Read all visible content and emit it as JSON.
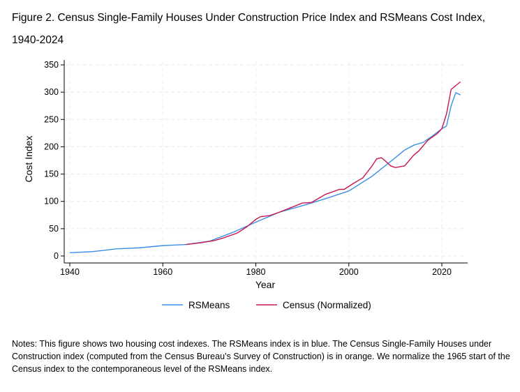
{
  "title": "Figure 2. Census Single-Family Houses Under Construction Price Index and RSMeans Cost Index, 1940-2024",
  "notes": "Notes: This figure shows two housing cost indexes. The RSMeans index is in blue. The Census Single-Family Houses under Construction index (computed from the Census Bureau’s Survey of Construction) is in orange. We normalize the 1965 start of the Census index to the contemporaneous level of the RSMeans index.",
  "chart_data": {
    "type": "line",
    "xlabel": "Year",
    "ylabel": "Cost Index",
    "xlim": [
      1940,
      2024
    ],
    "ylim": [
      0,
      350
    ],
    "xticks": [
      "1940",
      "1960",
      "1980",
      "2000",
      "2020"
    ],
    "yticks": [
      "0",
      "50",
      "100",
      "150",
      "200",
      "250",
      "300",
      "350"
    ],
    "grid": true,
    "legend": "bottom",
    "series": [
      {
        "name": "RSMeans",
        "color": "#3a8ee6",
        "x": [
          1940,
          1945,
          1950,
          1955,
          1960,
          1965,
          1970,
          1975,
          1980,
          1985,
          1990,
          1995,
          2000,
          2005,
          2010,
          2012,
          2014,
          2016,
          2018,
          2020,
          2021,
          2022,
          2023,
          2024
        ],
        "y": [
          6,
          8,
          13,
          15,
          19,
          21,
          27,
          43,
          62,
          80,
          92,
          105,
          119,
          146,
          180,
          194,
          203,
          208,
          220,
          233,
          238,
          275,
          299,
          295
        ]
      },
      {
        "name": "Census (Normalized)",
        "color": "#c8174f",
        "x": [
          1965,
          1968,
          1971,
          1973,
          1976,
          1978,
          1980,
          1981,
          1983,
          1985,
          1988,
          1990,
          1992,
          1995,
          1998,
          1999,
          2001,
          2003,
          2005,
          2006,
          2007,
          2008,
          2009,
          2010,
          2012,
          2014,
          2015,
          2017,
          2019,
          2020,
          2021,
          2022,
          2024
        ],
        "y": [
          21,
          24,
          28,
          33,
          42,
          53,
          67,
          72,
          74,
          80,
          90,
          97,
          98,
          113,
          122,
          122,
          133,
          143,
          165,
          178,
          180,
          173,
          165,
          162,
          165,
          185,
          192,
          212,
          224,
          233,
          260,
          305,
          319
        ]
      }
    ]
  }
}
